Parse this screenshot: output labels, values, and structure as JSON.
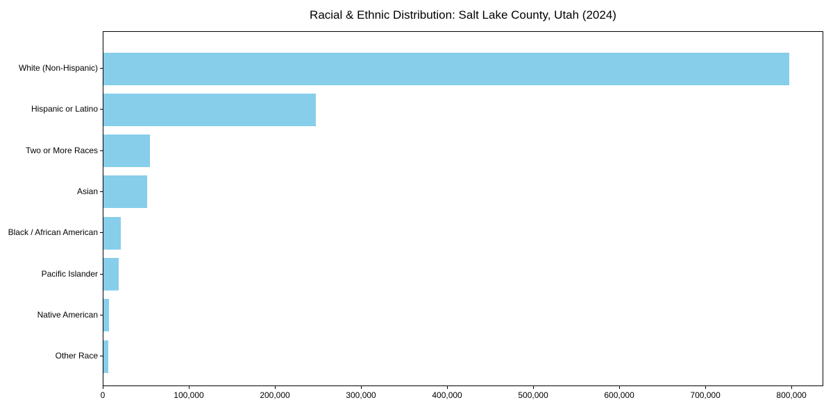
{
  "chart_data": {
    "type": "bar",
    "orientation": "horizontal",
    "title": "Racial & Ethnic Distribution: Salt Lake County, Utah (2024)",
    "categories": [
      "White (Non-Hispanic)",
      "Hispanic or Latino",
      "Two or More Races",
      "Asian",
      "Black / African American",
      "Pacific Islander",
      "Native American",
      "Other Race"
    ],
    "values": [
      797000,
      247000,
      54000,
      51000,
      20000,
      18000,
      6500,
      5500
    ],
    "xlabel": "",
    "ylabel": "",
    "xlim": [
      0,
      837000
    ],
    "xticks": [
      0,
      100000,
      200000,
      300000,
      400000,
      500000,
      600000,
      700000,
      800000
    ],
    "xtick_labels": [
      "0",
      "100,000",
      "200,000",
      "300,000",
      "400,000",
      "500,000",
      "600,000",
      "700,000",
      "800,000"
    ],
    "bar_color": "#87CEEB",
    "grid": false,
    "legend": "none",
    "frame": "full-box"
  }
}
